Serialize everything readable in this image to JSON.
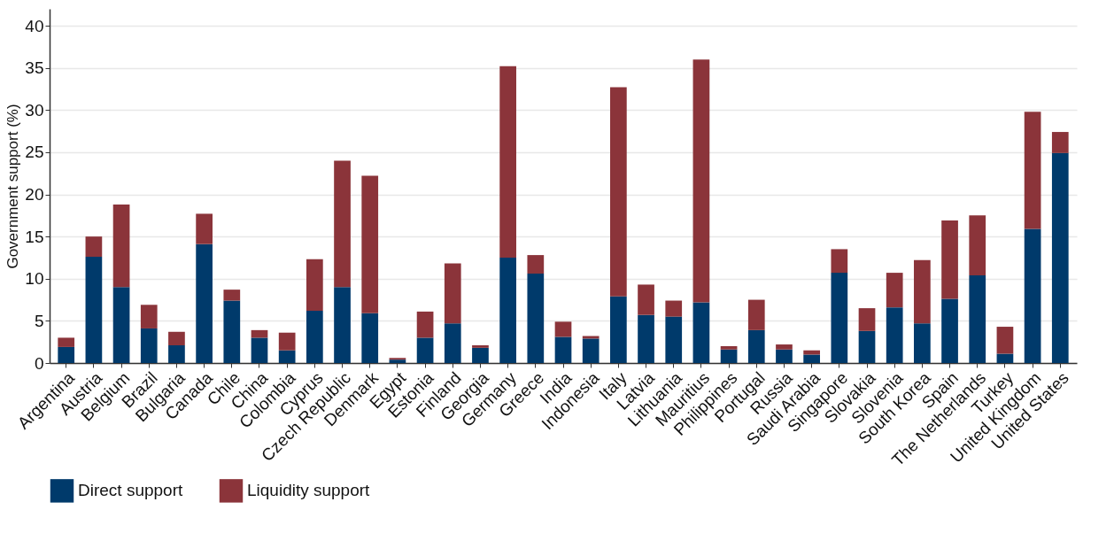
{
  "chart_data": {
    "type": "bar",
    "stacked": true,
    "ylabel": "Government support (%)",
    "categories": [
      "Argentina",
      "Austria",
      "Belgium",
      "Brazil",
      "Bulgaria",
      "Canada",
      "Chile",
      "China",
      "Colombia",
      "Cyprus",
      "Czech Republic",
      "Denmark",
      "Egypt",
      "Estonia",
      "Finland",
      "Georgia",
      "Germany",
      "Greece",
      "India",
      "Indonesia",
      "Italy",
      "Latvia",
      "Lithuania",
      "Mauritius",
      "Philippines",
      "Portugal",
      "Russia",
      "Saudi Arabia",
      "Singapore",
      "Slovakia",
      "Slovenia",
      "South Korea",
      "Spain",
      "The Netherlands",
      "Turkey",
      "United Kingdom",
      "United States"
    ],
    "series": [
      {
        "name": "Direct support",
        "color": "#003a6b",
        "values": [
          1.9,
          12.6,
          9.0,
          4.1,
          2.1,
          14.1,
          7.4,
          3.0,
          1.5,
          6.2,
          9.0,
          5.9,
          0.4,
          3.0,
          4.7,
          1.8,
          12.5,
          10.6,
          3.1,
          2.9,
          7.9,
          5.7,
          5.5,
          7.2,
          1.6,
          3.9,
          1.6,
          1.0,
          10.7,
          3.8,
          6.6,
          4.7,
          7.6,
          10.4,
          1.1,
          15.9,
          24.9
        ]
      },
      {
        "name": "Liquidity support",
        "color": "#8b343a",
        "values": [
          1.1,
          2.4,
          9.8,
          2.8,
          1.6,
          3.6,
          1.3,
          0.9,
          2.1,
          6.1,
          15.0,
          16.3,
          0.2,
          3.1,
          7.1,
          0.3,
          22.7,
          2.2,
          1.8,
          0.3,
          24.8,
          3.6,
          1.9,
          28.8,
          0.4,
          3.6,
          0.6,
          0.5,
          2.8,
          2.7,
          4.1,
          7.5,
          9.3,
          7.1,
          3.2,
          13.9,
          2.5
        ]
      }
    ],
    "ylim": [
      0,
      42
    ],
    "yticks": [
      0,
      5,
      10,
      15,
      20,
      25,
      30,
      35,
      40
    ],
    "grid": "y",
    "legend": "bottom"
  }
}
